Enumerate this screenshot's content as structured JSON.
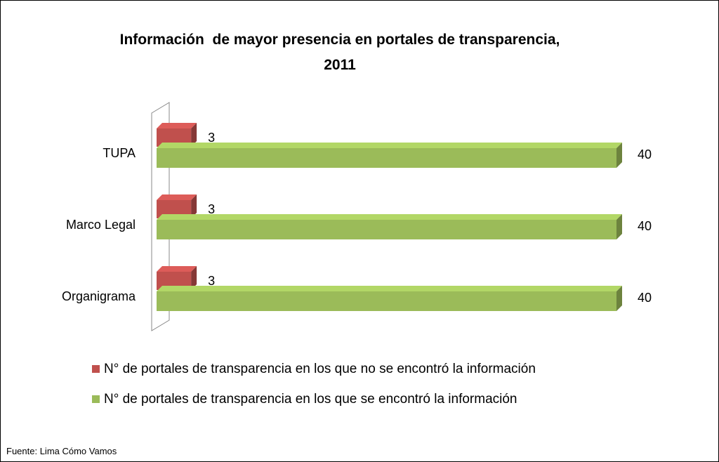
{
  "chart_data": {
    "type": "bar",
    "orientation": "horizontal",
    "title": "Información  de mayor presencia en portales de transparencia, 2011",
    "categories": [
      "TUPA",
      "Marco Legal",
      "Organigrama"
    ],
    "series": [
      {
        "name": "N° de portales de transparencia en los que no se encontró la información",
        "color": "#c0504d",
        "values": [
          3,
          3,
          3
        ]
      },
      {
        "name": "N° de portales de transparencia en los que se encontró la información",
        "color": "#9bbb59",
        "values": [
          40,
          40,
          40
        ]
      }
    ],
    "source": "Fuente: Lima Cómo Vamos"
  }
}
